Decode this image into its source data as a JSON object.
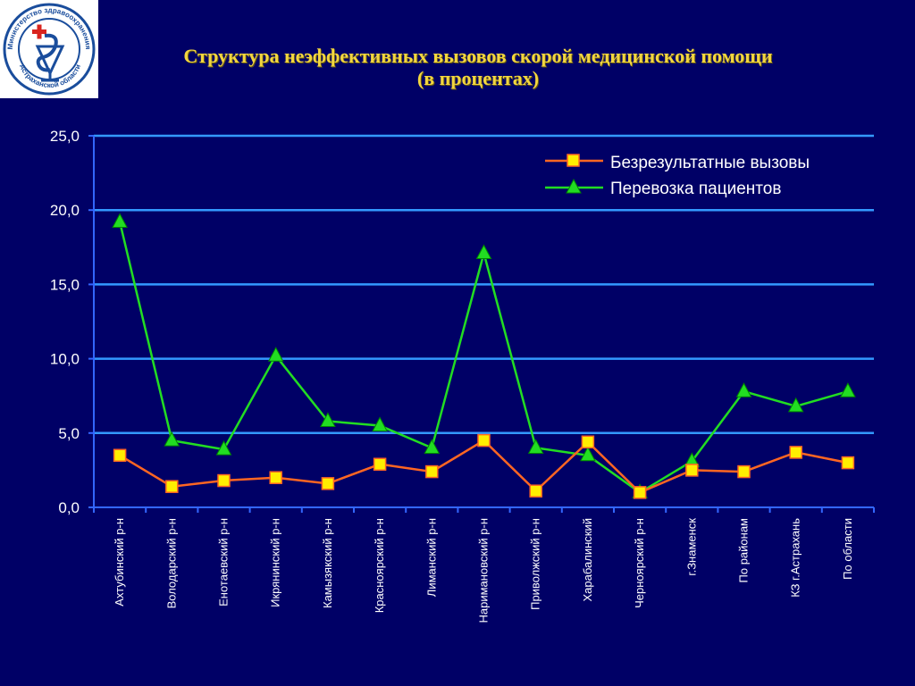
{
  "logo": {
    "text_top": "Министерство здравоохранения",
    "text_bottom": "Астраханской области"
  },
  "title": {
    "line1": "Структура неэффективных вызовов скорой медицинской помощи",
    "line2": "(в процентах)"
  },
  "colors": {
    "background": "#000066",
    "gridline": "#3399ff",
    "series_orange": "#ff6622",
    "marker_yellow": "#ffee00",
    "series_green": "#22dd22"
  },
  "chart_data": {
    "type": "line",
    "categories": [
      "Ахтубинский р-н",
      "Володарский р-н",
      "Енотаевский р-н",
      "Икрянинский р-н",
      "Камызякский р-н",
      "Красноярский р-н",
      "Лиманский р-н",
      "Наримановский р-н",
      "Приволжский р-н",
      "Харабалинский",
      "Черноярский р-н",
      "г.Знаменск",
      "По районам",
      "КЗ г.Астрахань",
      "По области"
    ],
    "series": [
      {
        "name": "Безрезультатные вызовы",
        "color": "#ff6622",
        "marker": "square",
        "values": [
          3.5,
          1.4,
          1.8,
          2.0,
          1.6,
          2.9,
          2.4,
          4.5,
          1.1,
          4.4,
          1.0,
          2.5,
          2.4,
          3.7,
          3.0
        ]
      },
      {
        "name": "Перевозка пациентов",
        "color": "#22dd22",
        "marker": "triangle",
        "values": [
          19.2,
          4.5,
          3.9,
          10.2,
          5.8,
          5.5,
          4.0,
          17.1,
          4.0,
          3.5,
          1.0,
          3.1,
          7.8,
          6.8,
          7.8
        ]
      }
    ],
    "y_ticks": [
      "25,0",
      "20,0",
      "15,0",
      "10,0",
      "5,0",
      "0,0"
    ],
    "ylim": [
      0,
      25
    ],
    "grid": true,
    "legend_position": "top-right"
  }
}
